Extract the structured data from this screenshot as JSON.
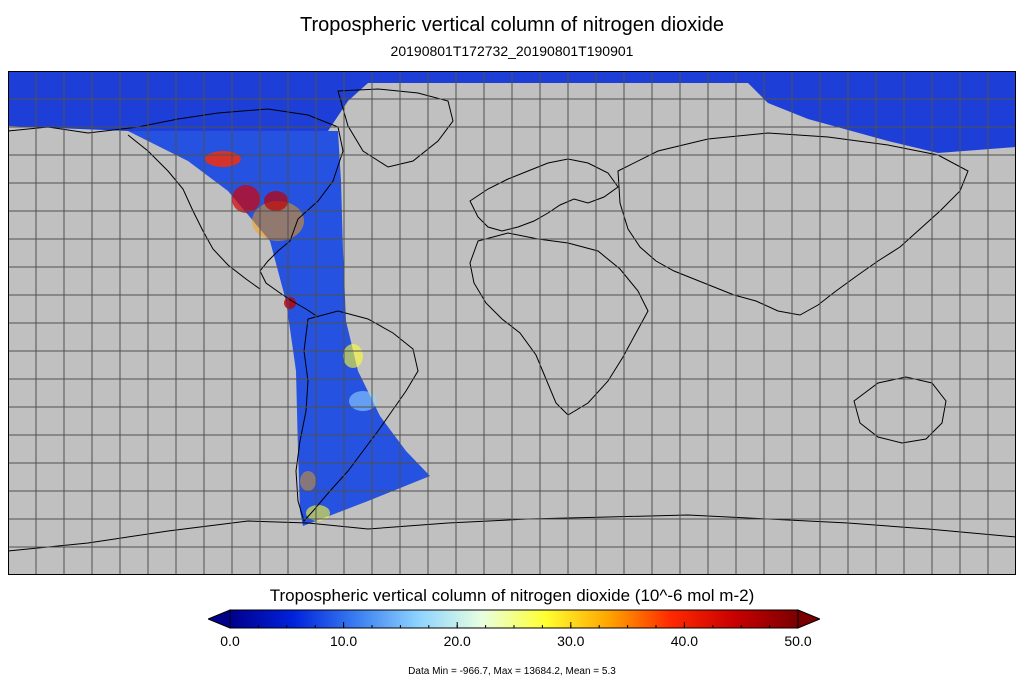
{
  "title": "Tropospheric vertical column of nitrogen dioxide",
  "subtitle": "20190801T172732_20190801T190901",
  "colorbar": {
    "title": "Tropospheric vertical column of nitrogen dioxide (10^-6 mol m-2)",
    "min": 0,
    "max": 50,
    "ticks": [
      "0.0",
      "10.0",
      "20.0",
      "30.0",
      "40.0",
      "50.0"
    ],
    "colors": [
      "#00008b",
      "#0022dd",
      "#3a7df0",
      "#8fd4ff",
      "#e8ffe0",
      "#ffff30",
      "#ffa500",
      "#ff2800",
      "#c80000",
      "#7a0000"
    ],
    "extend": "both"
  },
  "stats": "Data Min = -966.7, Max = 13684.2, Mean = 5.3",
  "map": {
    "projection": "equirectangular",
    "land_color": "#c0c0c0",
    "grid_color": "#505050",
    "grid_step_deg": 10,
    "coastline_color": "#000000"
  }
}
